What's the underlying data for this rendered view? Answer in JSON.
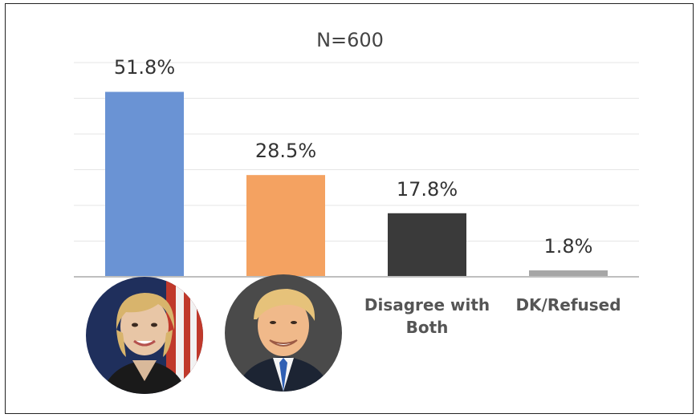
{
  "chart_data": {
    "type": "bar",
    "title": "N=600",
    "categories": [
      "",
      "",
      "Disagree with Both",
      "DK/Refused"
    ],
    "category_display": [
      {
        "kind": "portrait",
        "name": "hillary-clinton-portrait"
      },
      {
        "kind": "portrait",
        "name": "donald-trump-portrait"
      },
      {
        "kind": "text",
        "lines": [
          "Disagree with",
          "Both"
        ]
      },
      {
        "kind": "text",
        "lines": [
          "DK/Refused"
        ]
      }
    ],
    "values": [
      51.8,
      28.5,
      17.8,
      1.8
    ],
    "value_labels": [
      "51.8%",
      "28.5%",
      "17.8%",
      "1.8%"
    ],
    "colors": [
      "#6a93d4",
      "#f4a261",
      "#3a3a3a",
      "#a6a6a6"
    ],
    "ylim": [
      0,
      60
    ],
    "grid": true,
    "xlabel": "",
    "ylabel": ""
  }
}
